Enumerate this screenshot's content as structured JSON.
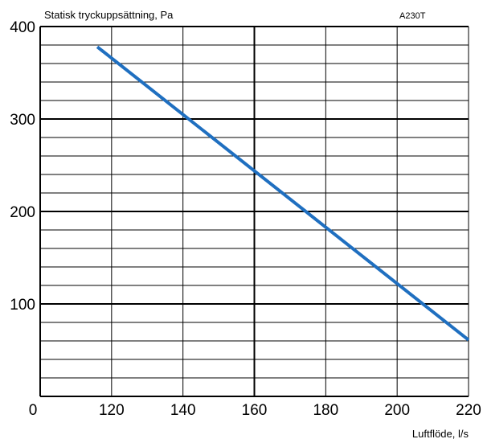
{
  "chart_data": {
    "type": "line",
    "title": "Statisk tryckuppsättning, Pa",
    "model_label": "A230T",
    "xlabel": "Luftflöde, l/s",
    "ylabel": "",
    "x_origin_label": "0",
    "xlim": [
      100,
      220
    ],
    "ylim": [
      0,
      400
    ],
    "x_ticks": [
      120,
      140,
      160,
      180,
      200,
      220
    ],
    "y_ticks": [
      100,
      200,
      300,
      400
    ],
    "y_minor_step": 20,
    "x_minor_step": 20,
    "grid": true,
    "series": [
      {
        "x": [
          116,
          220
        ],
        "y": [
          378,
          61
        ],
        "color": "#1f6fc0"
      }
    ]
  }
}
